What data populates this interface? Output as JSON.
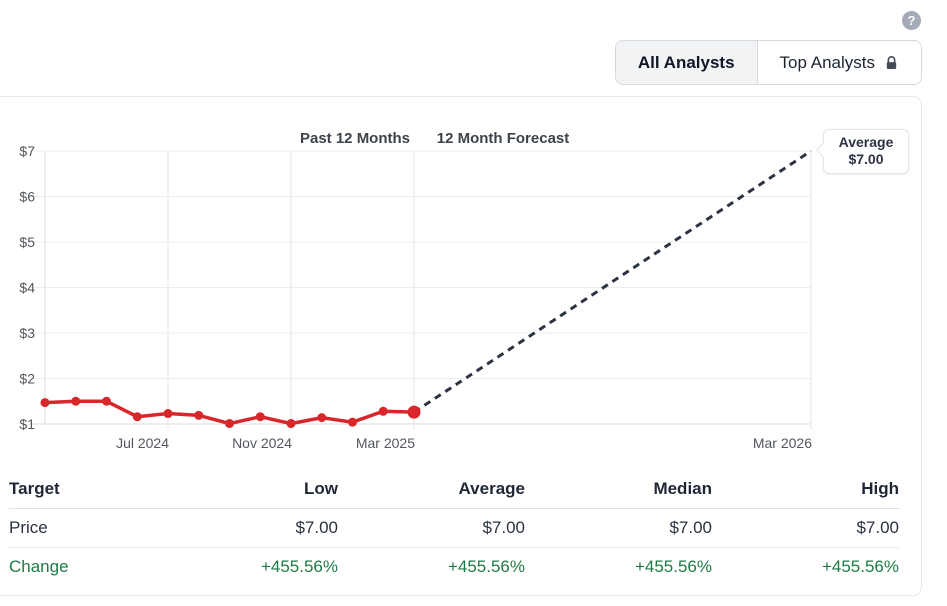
{
  "help": {
    "tooltip_icon": "question-icon"
  },
  "toggle": {
    "all_label": "All Analysts",
    "top_label": "Top Analysts",
    "active": "All Analysts"
  },
  "chart": {
    "past_title": "Past 12 Months",
    "forecast_title": "12 Month Forecast",
    "tooltip": {
      "title": "Average",
      "value": "$7.00"
    }
  },
  "chart_data": {
    "type": "line",
    "title": "Analyst 12 month price target forecast",
    "ylim": [
      1,
      7
    ],
    "y_tick_labels": [
      "$1",
      "$2",
      "$3",
      "$4",
      "$5",
      "$6",
      "$7"
    ],
    "x_tick_labels": [
      "Jul 2024",
      "Nov 2024",
      "Mar 2025",
      "Mar 2026"
    ],
    "grid": "on",
    "series": [
      {
        "name": "Past 12 Months",
        "style": "solid",
        "color": "#d9262b",
        "x": [
          "Mar 2024",
          "Apr 2024",
          "May 2024",
          "Jun 2024",
          "Jul 2024",
          "Aug 2024",
          "Sep 2024",
          "Oct 2024",
          "Nov 2024",
          "Dec 2024",
          "Jan 2025",
          "Feb 2025",
          "Mar 2025"
        ],
        "values": [
          1.47,
          1.5,
          1.5,
          1.16,
          1.23,
          1.19,
          1.01,
          1.16,
          1.01,
          1.14,
          1.04,
          1.28,
          1.26
        ]
      },
      {
        "name": "12 Month Forecast",
        "style": "dashed",
        "color": "#2c3343",
        "x": [
          "Mar 2025",
          "Mar 2026"
        ],
        "values": [
          1.26,
          7.0
        ]
      }
    ],
    "annotation": {
      "label": "Average",
      "value": "$7.00",
      "at": "Mar 2026"
    }
  },
  "table": {
    "headers": [
      "Target",
      "Low",
      "Average",
      "Median",
      "High"
    ],
    "rows": [
      {
        "label": "Price",
        "values": [
          "$7.00",
          "$7.00",
          "$7.00",
          "$7.00"
        ]
      },
      {
        "label": "Change",
        "values": [
          "+455.56%",
          "+455.56%",
          "+455.56%",
          "+455.56%"
        ]
      }
    ]
  },
  "colors": {
    "history_red": "#d9262b",
    "forecast_navy": "#2c3343",
    "positive_green": "#1e7b45",
    "grid_line": "#ebedef",
    "axis_line": "#d8dbdf",
    "tick_label": "#52575e"
  }
}
